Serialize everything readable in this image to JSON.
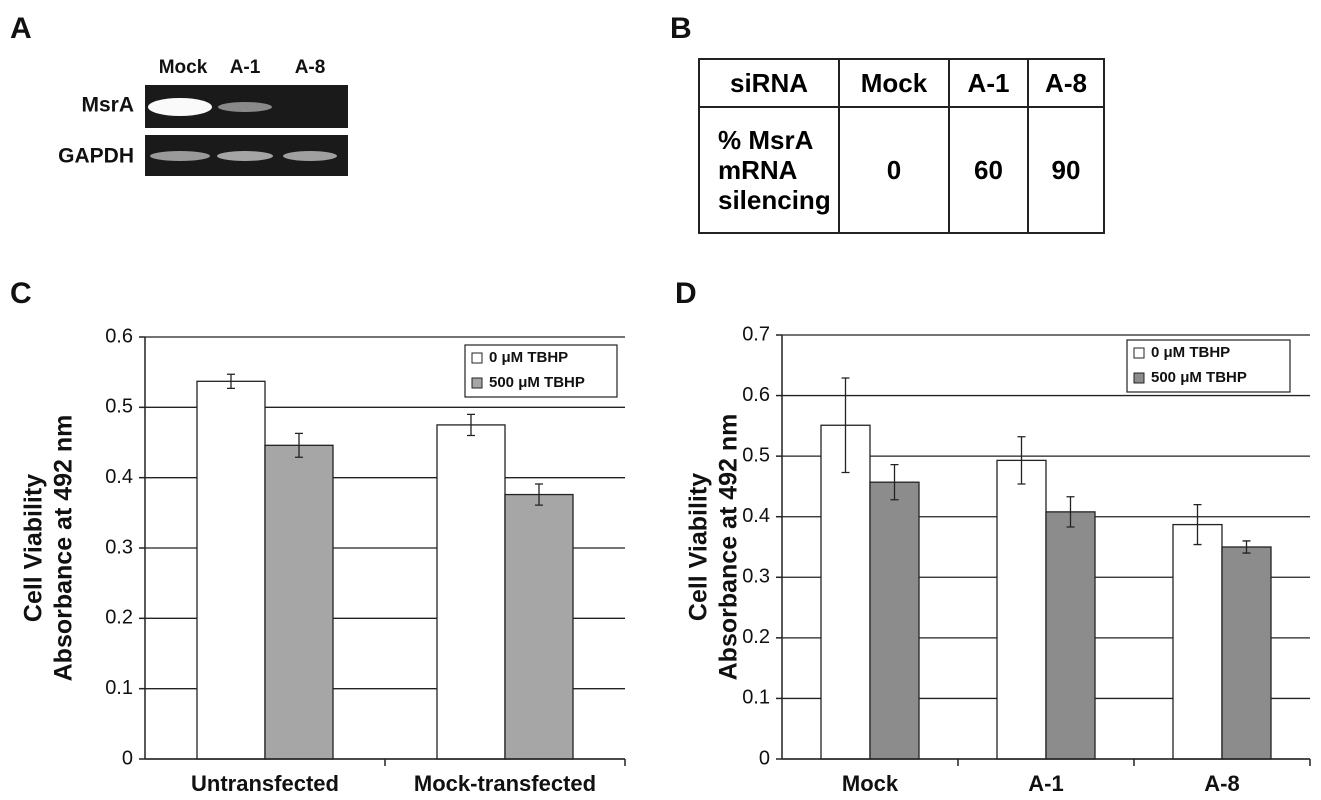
{
  "panel_labels": [
    "A",
    "B",
    "C",
    "D"
  ],
  "gel": {
    "lanes": [
      "Mock",
      "A-1",
      "A-8"
    ],
    "rows": [
      "MsrA",
      "GAPDH"
    ]
  },
  "table": {
    "header": [
      "siRNA",
      "Mock",
      "A-1",
      "A-8"
    ],
    "rows": [
      [
        "% MsrA mRNA silencing",
        0,
        60,
        90
      ]
    ]
  },
  "chart_data": [
    {
      "type": "bar",
      "ylabel": [
        "Cell Viability",
        "Absorbance at 492 nm"
      ],
      "categories": [
        "Untransfected",
        "Mock-transfected"
      ],
      "series": [
        {
          "name": "0 μM TBHP",
          "color": "#ffffff",
          "values": [
            0.537,
            0.475
          ],
          "errors": [
            0.01,
            0.015
          ]
        },
        {
          "name": "500 μM TBHP",
          "color": "#a6a6a6",
          "values": [
            0.446,
            0.376
          ],
          "errors": [
            0.017,
            0.015
          ]
        }
      ],
      "ylim": [
        0,
        0.6
      ],
      "yticks": [
        0,
        0.1,
        0.2,
        0.3,
        0.4,
        0.5,
        0.6
      ],
      "grid": true,
      "legend": "upper right"
    },
    {
      "type": "bar",
      "ylabel": [
        "Cell Viability",
        "Absorbance at 492 nm"
      ],
      "categories": [
        "Mock",
        "A-1",
        "A-8"
      ],
      "series": [
        {
          "name": "0 μM TBHP",
          "color": "#ffffff",
          "values": [
            0.551,
            0.493,
            0.387
          ],
          "errors": [
            0.078,
            0.039,
            0.033
          ]
        },
        {
          "name": "500 μM TBHP",
          "color": "#8c8c8c",
          "values": [
            0.457,
            0.408,
            0.35
          ],
          "errors": [
            0.029,
            0.025,
            0.01
          ]
        }
      ],
      "ylim": [
        0,
        0.7
      ],
      "yticks": [
        0,
        0.1,
        0.2,
        0.3,
        0.4,
        0.5,
        0.6,
        0.7
      ],
      "grid": true,
      "legend": "upper right"
    }
  ]
}
